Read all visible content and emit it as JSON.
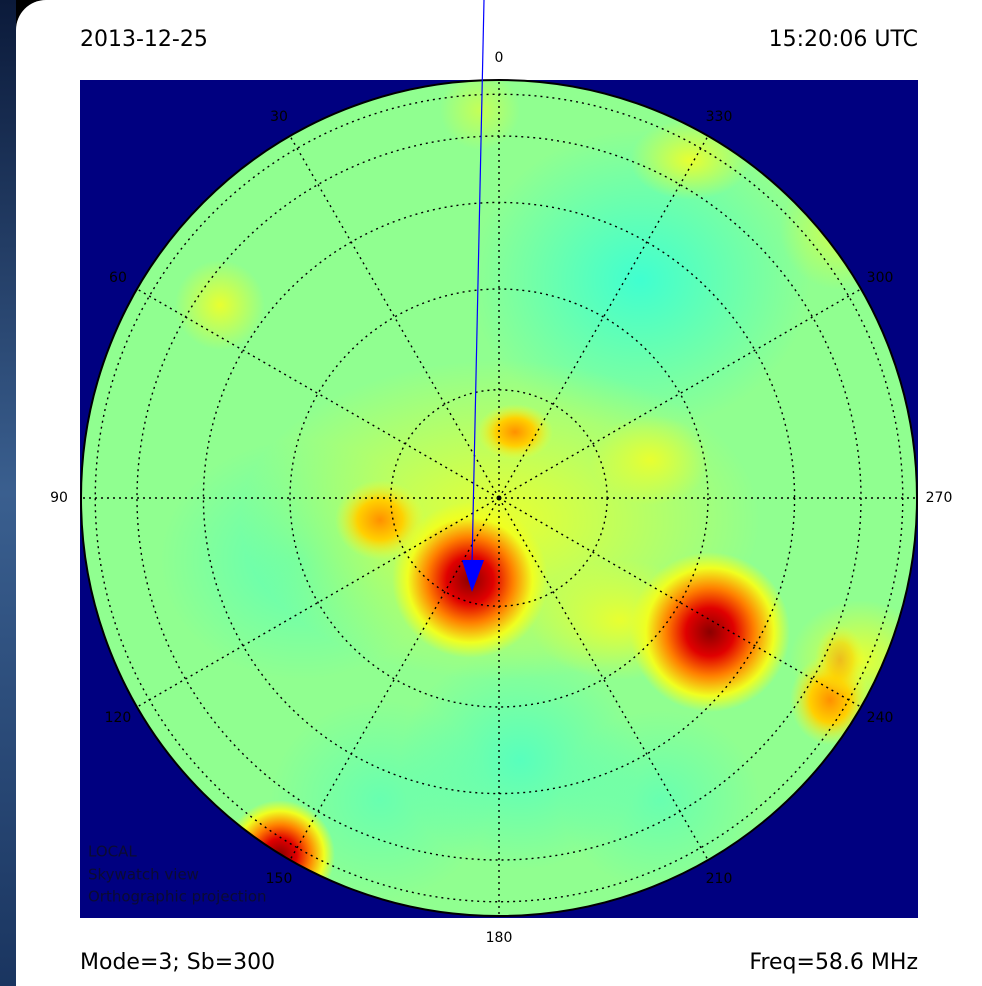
{
  "chart_data": {
    "type": "skymap",
    "date": "2013-12-25",
    "time": "15:20:06 UTC",
    "azimuth_ticks": [
      0,
      30,
      60,
      90,
      120,
      150,
      180,
      210,
      240,
      270,
      300,
      330
    ],
    "grid": true,
    "notes": [
      "LOCAL",
      "Skywatch view",
      "Orthographic projection"
    ],
    "footer_left": "Mode=3; Sb=300",
    "footer_right": "Freq=58.6 MHz"
  }
}
